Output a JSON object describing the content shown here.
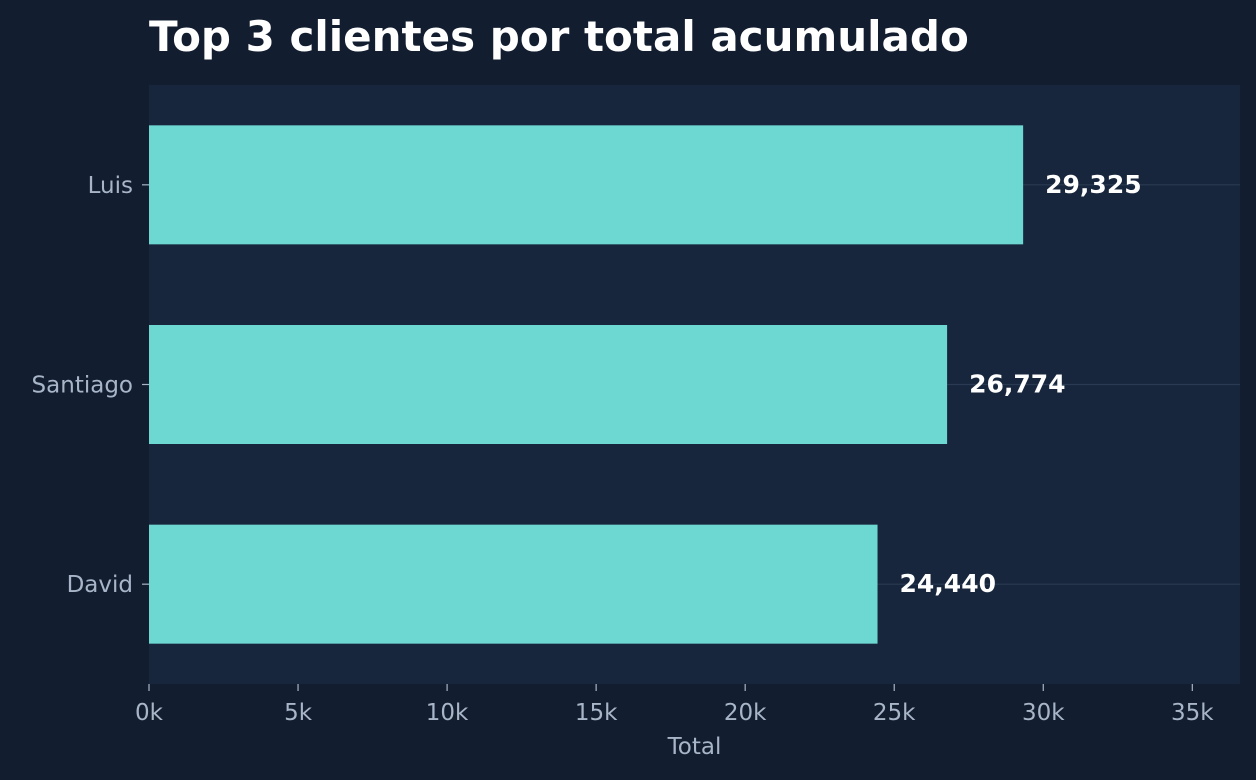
{
  "chart_data": {
    "type": "bar",
    "orientation": "horizontal",
    "title": "Top 3 clientes por total acumulado",
    "xlabel": "Total",
    "ylabel": "",
    "categories": [
      "Luis",
      "Santiago",
      "David"
    ],
    "values": [
      29325,
      26774,
      24440
    ],
    "value_labels": [
      "29,325",
      "26,774",
      "24,440"
    ],
    "xlim": [
      0,
      36600
    ],
    "xticks": [
      0,
      5000,
      10000,
      15000,
      20000,
      25000,
      30000,
      35000
    ],
    "xtick_labels": [
      "0k",
      "5k",
      "10k",
      "15k",
      "20k",
      "25k",
      "30k",
      "35k"
    ],
    "grid": "horizontal-at-categories",
    "legend": "none"
  },
  "colors": {
    "background": "#121d30",
    "plot_background": "#17263c",
    "bar": "#6dd8d1",
    "title": "#ffffff",
    "value_label": "#ffffff",
    "tick_label": "#a8b5c8",
    "axis_label": "#a8b5c8",
    "grid": "#2a3a52"
  }
}
